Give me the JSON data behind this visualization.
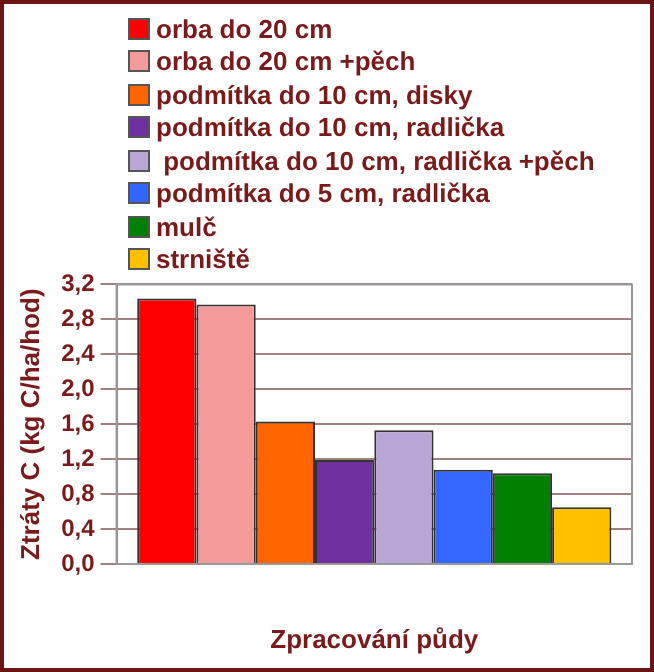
{
  "chart_data": {
    "type": "bar",
    "xlabel": "Zpracování půdy",
    "ylabel": "Ztráty C (kg C/ha/hod)",
    "categories": [
      null
    ],
    "series": [
      {
        "name": "orba do 20 cm",
        "color": "#ff0000",
        "values": [
          3.04
        ]
      },
      {
        "name": "orba do 20 cm +pěch",
        "color": "#f49a9a",
        "values": [
          2.97
        ]
      },
      {
        "name": "podmítka do 10 cm, disky",
        "color": "#ff6600",
        "values": [
          1.63
        ]
      },
      {
        "name": "podmítka do 10 cm, radlička",
        "color": "#7030a0",
        "values": [
          1.19
        ]
      },
      {
        "name": " podmítka do 10 cm, radlička +pěch",
        "color": "#b7a6d6",
        "values": [
          1.53
        ]
      },
      {
        "name": "podmítka do 5 cm, radlička",
        "color": "#3366ff",
        "values": [
          1.08
        ]
      },
      {
        "name": "mulč",
        "color": "#008000",
        "values": [
          1.04
        ]
      },
      {
        "name": "strniště",
        "color": "#ffc000",
        "values": [
          0.65
        ]
      }
    ],
    "ylim": [
      0,
      3.2
    ],
    "yticks": [
      {
        "value": 0,
        "label": "0,0"
      },
      {
        "value": 0.4,
        "label": "0,4"
      },
      {
        "value": 0.8,
        "label": "0,8"
      },
      {
        "value": 1.2,
        "label": "1,2"
      },
      {
        "value": 1.6,
        "label": "1,6"
      },
      {
        "value": 2.0,
        "label": "2,0"
      },
      {
        "value": 2.4,
        "label": "2,4"
      },
      {
        "value": 2.8,
        "label": "2,8"
      },
      {
        "value": 3.2,
        "label": "3,2"
      }
    ],
    "grid": "y",
    "legend": "top"
  }
}
